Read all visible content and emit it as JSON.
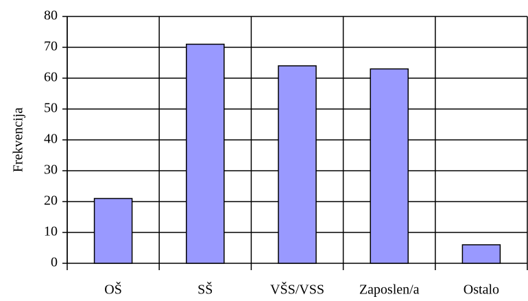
{
  "chart_data": {
    "type": "bar",
    "y_label": "Frekvencija",
    "categories": [
      "OŠ",
      "SŠ",
      "VŠS/VSS",
      "Zaposlen/a",
      "Ostalo"
    ],
    "values": [
      21,
      71,
      64,
      63,
      6
    ],
    "color": "#9999ff",
    "ylim": [
      0,
      80
    ],
    "yticks": [
      0,
      10,
      20,
      30,
      40,
      50,
      60,
      70,
      80
    ],
    "grid": true
  }
}
